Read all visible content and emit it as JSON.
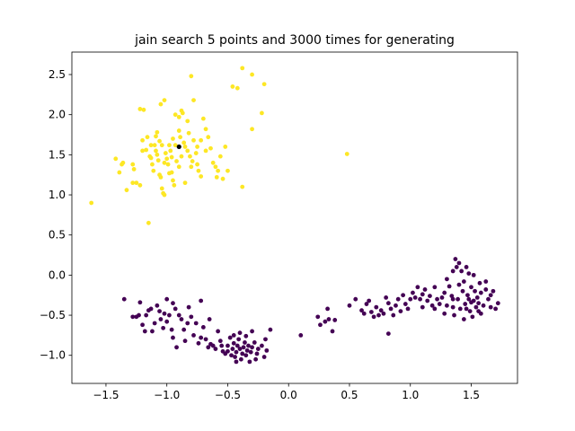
{
  "chart_data": {
    "type": "scatter",
    "title": "jain search 5 points and 3000 times for generating",
    "xlabel": "",
    "ylabel": "",
    "xlim": [
      -1.78,
      1.88
    ],
    "ylim": [
      -1.35,
      2.78
    ],
    "xticks": [
      -1.5,
      -1.0,
      -0.5,
      0.0,
      0.5,
      1.0,
      1.5
    ],
    "xtick_labels": [
      "−1.5",
      "−1.0",
      "−0.5",
      "0.0",
      "0.5",
      "1.0",
      "1.5"
    ],
    "yticks": [
      -1.0,
      -0.5,
      0.0,
      0.5,
      1.0,
      1.5,
      2.0,
      2.5
    ],
    "ytick_labels": [
      "−1.0",
      "−0.5",
      "0.0",
      "0.5",
      "1.0",
      "1.5",
      "2.0",
      "2.5"
    ],
    "grid": false,
    "legend": "none",
    "colors": {
      "cluster_0": "#440154",
      "cluster_1": "#fde725",
      "center": "#000000"
    },
    "series": [
      {
        "cluster": 1,
        "color": "#fde725",
        "points": [
          [
            -1.62,
            0.9
          ],
          [
            -1.42,
            1.45
          ],
          [
            -1.39,
            1.28
          ],
          [
            -1.37,
            1.38
          ],
          [
            -1.36,
            1.4
          ],
          [
            -1.33,
            1.06
          ],
          [
            -1.28,
            1.38
          ],
          [
            -1.27,
            1.32
          ],
          [
            -1.25,
            1.15
          ],
          [
            -1.22,
            1.12
          ],
          [
            -1.22,
            2.07
          ],
          [
            -1.19,
            2.06
          ],
          [
            -1.2,
            1.68
          ],
          [
            -1.17,
            1.56
          ],
          [
            -1.14,
            1.48
          ],
          [
            -1.13,
            1.46
          ],
          [
            -1.12,
            1.38
          ],
          [
            -1.11,
            1.3
          ],
          [
            -1.1,
            1.62
          ],
          [
            -1.09,
            1.55
          ],
          [
            -1.09,
            1.73
          ],
          [
            -1.08,
            1.5
          ],
          [
            -1.07,
            1.43
          ],
          [
            -1.06,
            1.25
          ],
          [
            -1.05,
            1.22
          ],
          [
            -1.04,
            1.08
          ],
          [
            -1.03,
            1.02
          ],
          [
            -1.02,
            1.0
          ],
          [
            -1.01,
            1.52
          ],
          [
            -1.0,
            1.45
          ],
          [
            -0.99,
            1.38
          ],
          [
            -0.98,
            1.62
          ],
          [
            -0.97,
            1.55
          ],
          [
            -0.96,
            1.28
          ],
          [
            -0.95,
            1.18
          ],
          [
            -0.94,
            1.12
          ],
          [
            -0.92,
            1.42
          ],
          [
            -0.9,
            1.8
          ],
          [
            -0.89,
            1.72
          ],
          [
            -0.88,
            2.05
          ],
          [
            -0.87,
            2.02
          ],
          [
            -0.86,
            1.65
          ],
          [
            -0.85,
            1.6
          ],
          [
            -0.83,
            1.55
          ],
          [
            -0.81,
            1.48
          ],
          [
            -0.8,
            1.35
          ],
          [
            -0.79,
            1.42
          ],
          [
            -0.78,
            1.68
          ],
          [
            -0.76,
            1.52
          ],
          [
            -0.75,
            1.38
          ],
          [
            -0.74,
            1.3
          ],
          [
            -0.72,
            1.68
          ],
          [
            -0.7,
            1.95
          ],
          [
            -0.68,
            1.82
          ],
          [
            -0.66,
            1.72
          ],
          [
            -0.64,
            1.58
          ],
          [
            -0.62,
            1.4
          ],
          [
            -0.6,
            1.35
          ],
          [
            -0.59,
            1.22
          ],
          [
            -0.58,
            1.3
          ],
          [
            -0.56,
            1.48
          ],
          [
            -0.54,
            1.2
          ],
          [
            -0.52,
            1.6
          ],
          [
            -0.5,
            1.3
          ],
          [
            -0.46,
            2.35
          ],
          [
            -0.42,
            2.33
          ],
          [
            -0.38,
            1.1
          ],
          [
            -0.38,
            2.58
          ],
          [
            -0.3,
            2.5
          ],
          [
            -0.3,
            1.82
          ],
          [
            -0.22,
            2.02
          ],
          [
            -0.2,
            2.38
          ],
          [
            0.48,
            1.51
          ],
          [
            -1.15,
            0.65
          ],
          [
            -1.05,
            2.13
          ],
          [
            -1.02,
            2.18
          ],
          [
            -0.93,
            2.0
          ],
          [
            -0.9,
            1.97
          ],
          [
            -0.83,
            1.92
          ],
          [
            -0.8,
            2.48
          ],
          [
            -0.78,
            2.18
          ],
          [
            -0.72,
            1.23
          ],
          [
            -0.85,
            1.15
          ],
          [
            -0.93,
            1.62
          ],
          [
            -0.98,
            1.27
          ],
          [
            -1.04,
            1.62
          ],
          [
            -1.13,
            1.62
          ],
          [
            -1.16,
            1.72
          ],
          [
            -1.2,
            1.55
          ],
          [
            -1.08,
            1.78
          ],
          [
            -0.95,
            1.7
          ],
          [
            -0.88,
            1.48
          ],
          [
            -0.75,
            1.6
          ],
          [
            -0.68,
            1.55
          ],
          [
            -1.28,
            1.15
          ],
          [
            -0.96,
            1.47
          ],
          [
            -1.02,
            1.4
          ],
          [
            -0.9,
            1.35
          ],
          [
            -1.06,
            1.67
          ],
          [
            -0.82,
            1.77
          ]
        ]
      },
      {
        "cluster": 0,
        "color": "#440154",
        "points": [
          [
            -1.35,
            -0.3
          ],
          [
            -1.28,
            -0.52
          ],
          [
            -1.25,
            -0.52
          ],
          [
            -1.23,
            -0.5
          ],
          [
            -1.2,
            -0.62
          ],
          [
            -1.18,
            -0.7
          ],
          [
            -1.17,
            -0.5
          ],
          [
            -1.15,
            -0.44
          ],
          [
            -1.13,
            -0.42
          ],
          [
            -1.12,
            -0.7
          ],
          [
            -1.1,
            -0.6
          ],
          [
            -1.08,
            -0.38
          ],
          [
            -1.06,
            -0.45
          ],
          [
            -1.05,
            -0.55
          ],
          [
            -1.03,
            -0.66
          ],
          [
            -1.02,
            -0.48
          ],
          [
            -1.0,
            -0.58
          ],
          [
            -0.98,
            -0.5
          ],
          [
            -0.96,
            -0.68
          ],
          [
            -0.95,
            -0.78
          ],
          [
            -0.93,
            -0.42
          ],
          [
            -0.92,
            -0.9
          ],
          [
            -0.9,
            -0.5
          ],
          [
            -0.88,
            -0.55
          ],
          [
            -0.86,
            -0.68
          ],
          [
            -0.85,
            -0.82
          ],
          [
            -0.83,
            -0.6
          ],
          [
            -0.8,
            -0.52
          ],
          [
            -0.78,
            -0.75
          ],
          [
            -0.76,
            -0.6
          ],
          [
            -0.74,
            -0.85
          ],
          [
            -0.72,
            -0.78
          ],
          [
            -0.7,
            -0.65
          ],
          [
            -0.68,
            -0.8
          ],
          [
            -0.66,
            -0.9
          ],
          [
            -0.64,
            -0.86
          ],
          [
            -0.62,
            -0.88
          ],
          [
            -0.6,
            -0.92
          ],
          [
            -0.58,
            -0.7
          ],
          [
            -0.56,
            -0.82
          ],
          [
            -0.54,
            -0.95
          ],
          [
            -0.52,
            -0.98
          ],
          [
            -0.5,
            -0.88
          ],
          [
            -0.48,
            -0.78
          ],
          [
            -0.47,
            -1.0
          ],
          [
            -0.46,
            -0.92
          ],
          [
            -0.45,
            -0.85
          ],
          [
            -0.44,
            -1.02
          ],
          [
            -0.43,
            -0.96
          ],
          [
            -0.42,
            -0.88
          ],
          [
            -0.41,
            -0.8
          ],
          [
            -0.4,
            -0.92
          ],
          [
            -0.39,
            -1.05
          ],
          [
            -0.38,
            -0.98
          ],
          [
            -0.37,
            -0.9
          ],
          [
            -0.36,
            -0.84
          ],
          [
            -0.35,
            -1.0
          ],
          [
            -0.34,
            -0.94
          ],
          [
            -0.33,
            -0.88
          ],
          [
            -0.32,
            -1.08
          ],
          [
            -0.31,
            -0.96
          ],
          [
            -0.3,
            -0.9
          ],
          [
            -0.28,
            -0.84
          ],
          [
            -0.26,
            -0.98
          ],
          [
            -0.25,
            -0.92
          ],
          [
            -0.22,
            -0.88
          ],
          [
            -0.2,
            -1.02
          ],
          [
            -0.18,
            -0.94
          ],
          [
            -0.19,
            -0.8
          ],
          [
            -0.45,
            -0.75
          ],
          [
            -0.4,
            -0.72
          ],
          [
            -0.35,
            -0.76
          ],
          [
            -0.3,
            -0.7
          ],
          [
            -0.15,
            -0.68
          ],
          [
            -0.5,
            -0.95
          ],
          [
            -0.55,
            -0.88
          ],
          [
            -0.27,
            -1.05
          ],
          [
            -0.43,
            -1.08
          ],
          [
            -1.22,
            -0.34
          ],
          [
            -0.95,
            -0.35
          ],
          [
            -0.72,
            -0.32
          ],
          [
            -0.82,
            -0.4
          ],
          [
            -0.65,
            -0.55
          ],
          [
            -1.0,
            -0.3
          ],
          [
            0.1,
            -0.75
          ],
          [
            0.24,
            -0.52
          ],
          [
            0.26,
            -0.62
          ],
          [
            0.3,
            -0.58
          ],
          [
            0.33,
            -0.55
          ],
          [
            0.36,
            -0.7
          ],
          [
            0.38,
            -0.56
          ],
          [
            0.32,
            -0.42
          ],
          [
            0.55,
            -0.3
          ],
          [
            0.6,
            -0.44
          ],
          [
            0.62,
            -0.48
          ],
          [
            0.64,
            -0.36
          ],
          [
            0.66,
            -0.32
          ],
          [
            0.68,
            -0.46
          ],
          [
            0.7,
            -0.52
          ],
          [
            0.72,
            -0.4
          ],
          [
            0.74,
            -0.5
          ],
          [
            0.76,
            -0.44
          ],
          [
            0.78,
            -0.48
          ],
          [
            0.8,
            -0.28
          ],
          [
            0.82,
            -0.35
          ],
          [
            0.84,
            -0.42
          ],
          [
            0.86,
            -0.5
          ],
          [
            0.88,
            -0.38
          ],
          [
            0.9,
            -0.3
          ],
          [
            0.92,
            -0.45
          ],
          [
            0.94,
            -0.25
          ],
          [
            0.96,
            -0.36
          ],
          [
            0.98,
            -0.42
          ],
          [
            1.0,
            -0.3
          ],
          [
            1.02,
            -0.22
          ],
          [
            1.04,
            -0.28
          ],
          [
            1.06,
            -0.15
          ],
          [
            1.08,
            -0.3
          ],
          [
            1.1,
            -0.24
          ],
          [
            1.12,
            -0.18
          ],
          [
            1.14,
            -0.32
          ],
          [
            1.16,
            -0.26
          ],
          [
            1.18,
            -0.38
          ],
          [
            1.2,
            -0.42
          ],
          [
            1.22,
            -0.3
          ],
          [
            1.24,
            -0.36
          ],
          [
            1.26,
            -0.28
          ],
          [
            1.28,
            -0.22
          ],
          [
            1.3,
            -0.38
          ],
          [
            1.32,
            -0.14
          ],
          [
            1.34,
            -0.26
          ],
          [
            1.35,
            -0.4
          ],
          [
            1.36,
            -0.5
          ],
          [
            1.37,
            0.2
          ],
          [
            1.38,
            0.1
          ],
          [
            1.39,
            -0.3
          ],
          [
            1.4,
            0.15
          ],
          [
            1.41,
            -0.42
          ],
          [
            1.42,
            0.05
          ],
          [
            1.43,
            -0.2
          ],
          [
            1.44,
            -0.08
          ],
          [
            1.45,
            -0.36
          ],
          [
            1.46,
            0.1
          ],
          [
            1.47,
            -0.25
          ],
          [
            1.48,
            -0.3
          ],
          [
            1.49,
            -0.45
          ],
          [
            1.5,
            -0.15
          ],
          [
            1.51,
            -0.52
          ],
          [
            1.52,
            -0.32
          ],
          [
            1.53,
            -0.2
          ],
          [
            1.54,
            -0.4
          ],
          [
            1.55,
            -0.28
          ],
          [
            1.56,
            -0.35
          ],
          [
            1.57,
            -0.1
          ],
          [
            1.58,
            -0.22
          ],
          [
            1.6,
            -0.38
          ],
          [
            1.62,
            -0.18
          ],
          [
            1.64,
            -0.3
          ],
          [
            1.66,
            -0.25
          ],
          [
            1.68,
            -0.2
          ],
          [
            1.7,
            -0.42
          ],
          [
            1.72,
            -0.35
          ],
          [
            1.35,
            0.05
          ],
          [
            1.28,
            -0.48
          ],
          [
            1.44,
            -0.55
          ],
          [
            1.52,
            0.0
          ],
          [
            1.58,
            -0.48
          ],
          [
            1.62,
            -0.08
          ],
          [
            1.4,
            -0.12
          ],
          [
            1.48,
            0.02
          ],
          [
            0.82,
            -0.73
          ],
          [
            1.1,
            -0.4
          ],
          [
            0.5,
            -0.38
          ],
          [
            1.2,
            -0.15
          ],
          [
            1.3,
            -0.05
          ],
          [
            1.35,
            -0.3
          ],
          [
            1.46,
            -0.42
          ],
          [
            1.56,
            -0.45
          ],
          [
            1.66,
            -0.4
          ],
          [
            1.5,
            -0.34
          ]
        ]
      }
    ],
    "centers": [
      [
        -0.9,
        1.6
      ]
    ]
  }
}
